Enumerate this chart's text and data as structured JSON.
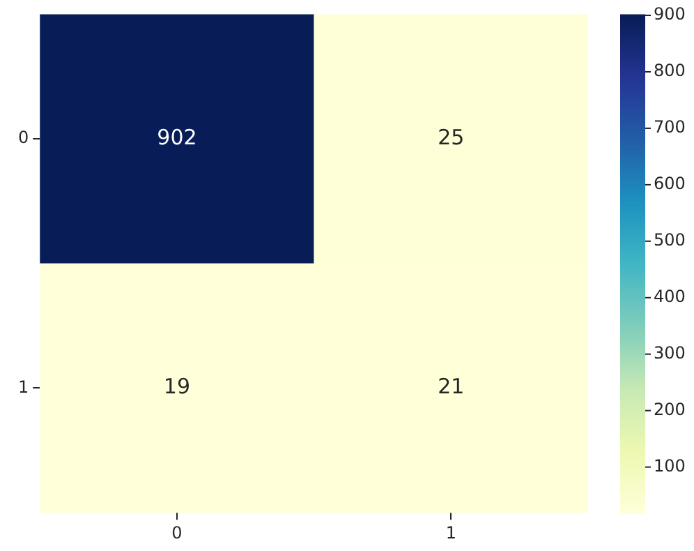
{
  "chart_data": {
    "type": "heatmap",
    "categories": [
      "0",
      "1"
    ],
    "y_categories": [
      "0",
      "1"
    ],
    "cells": [
      [
        902,
        25
      ],
      [
        19,
        21
      ]
    ],
    "clim": [
      19,
      902
    ],
    "cticks": [
      100,
      200,
      300,
      400,
      500,
      600,
      700,
      800,
      900
    ],
    "data_labels": true
  }
}
